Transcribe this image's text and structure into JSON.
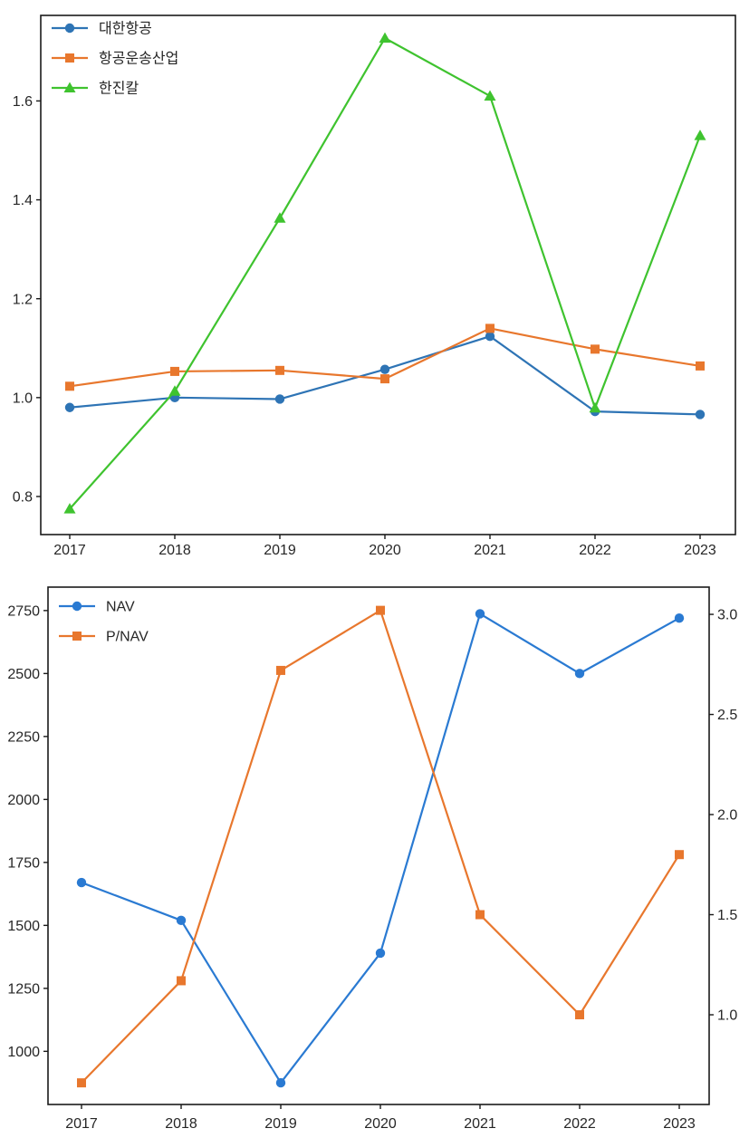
{
  "page_background": "#ffffff",
  "chart_data": [
    {
      "type": "line",
      "title": "",
      "xlabel": "",
      "ylabel": "",
      "grid": false,
      "legend_position": "upper-left",
      "categories": [
        "2017",
        "2018",
        "2019",
        "2020",
        "2021",
        "2022",
        "2023"
      ],
      "series": [
        {
          "name": "대한항공",
          "marker": "circle",
          "color": "#2e74b5",
          "axis": "left",
          "values": [
            0.98,
            1.0,
            0.997,
            1.057,
            1.124,
            0.972,
            0.966
          ]
        },
        {
          "name": "항공운송산업",
          "marker": "square",
          "color": "#e8772d",
          "axis": "left",
          "values": [
            1.023,
            1.053,
            1.055,
            1.038,
            1.14,
            1.098,
            1.064
          ]
        },
        {
          "name": "한진칼",
          "marker": "triangle-up",
          "color": "#3fc32f",
          "axis": "left",
          "values": [
            0.775,
            1.013,
            1.363,
            1.727,
            1.61,
            0.979,
            1.53
          ]
        }
      ],
      "axes": {
        "left": {
          "lim": [
            0.723,
            1.773
          ],
          "tick_values": [
            0.8,
            1.0,
            1.2,
            1.4,
            1.6
          ],
          "tick_labels": [
            "0.8",
            "1.0",
            "1.2",
            "1.4",
            "1.6"
          ]
        }
      }
    },
    {
      "type": "line",
      "title": "",
      "xlabel": "",
      "ylabel": "",
      "grid": false,
      "legend_position": "upper-left",
      "categories": [
        "2017",
        "2018",
        "2019",
        "2020",
        "2021",
        "2022",
        "2023"
      ],
      "series": [
        {
          "name": "NAV",
          "marker": "circle",
          "color": "#2a7ad2",
          "axis": "left",
          "values": [
            1670,
            1520,
            875,
            1390,
            2737,
            2500,
            2720
          ]
        },
        {
          "name": "P/NAV",
          "marker": "square",
          "color": "#e8772d",
          "axis": "right",
          "values": [
            0.66,
            1.17,
            2.72,
            3.02,
            1.5,
            1.0,
            1.8
          ]
        }
      ],
      "axes": {
        "left": {
          "lim": [
            789,
            2843
          ],
          "tick_values": [
            1000,
            1250,
            1500,
            1750,
            2000,
            2250,
            2500,
            2750
          ],
          "tick_labels": [
            "1000",
            "1250",
            "1500",
            "1750",
            "2000",
            "2250",
            "2500",
            "2750"
          ]
        },
        "right": {
          "lim": [
            0.552,
            3.136
          ],
          "tick_values": [
            1.0,
            1.5,
            2.0,
            2.5,
            3.0
          ],
          "tick_labels": [
            "1.0",
            "1.5",
            "2.0",
            "2.5",
            "3.0"
          ]
        }
      }
    }
  ],
  "style": {
    "spine_color": "#1a1a1a",
    "tick_color": "#262626",
    "tick_font_size": 16,
    "legend_font_size": 16
  }
}
